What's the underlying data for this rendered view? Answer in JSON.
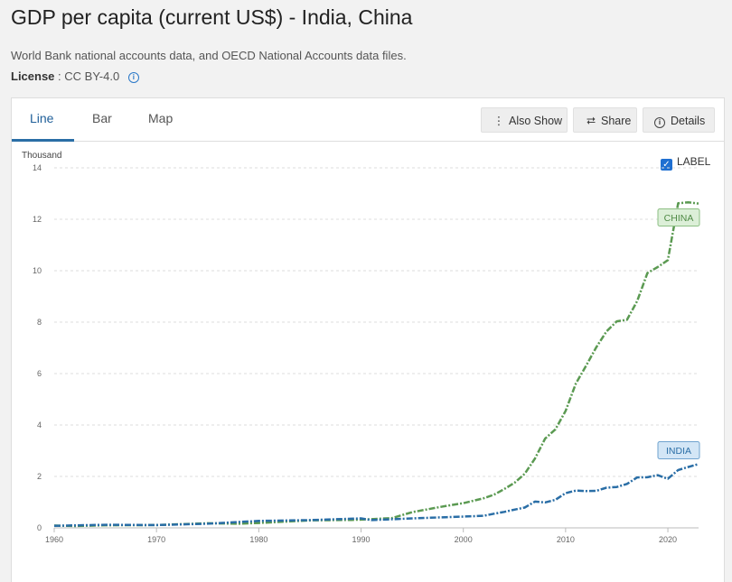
{
  "page": {
    "title": "GDP per capita (current US$) - India, China",
    "source": "World Bank national accounts data, and OECD National Accounts data files.",
    "license_label": "License",
    "license_value": ": CC BY-4.0",
    "info_glyph": "i"
  },
  "tabs": [
    {
      "label": "Line",
      "active": true
    },
    {
      "label": "Bar",
      "active": false
    },
    {
      "label": "Map",
      "active": false
    }
  ],
  "toolbar": {
    "also_show": "Also Show",
    "share": "Share",
    "details": "Details",
    "also_show_icon": "⋮",
    "share_icon": "⮂",
    "details_icon": "i"
  },
  "label_toggle": {
    "label": "LABEL",
    "checked": true,
    "check_glyph": "✓"
  },
  "colors": {
    "china": "#5b9a52",
    "india": "#2a6ea6",
    "grid": "#dcdcdc"
  },
  "chart_data": {
    "type": "line",
    "ylabel": "Thousand",
    "ylim": [
      0,
      14
    ],
    "yticks": [
      0,
      2,
      4,
      6,
      8,
      10,
      12,
      14
    ],
    "xlim": [
      1960,
      2023
    ],
    "xticks": [
      1960,
      1970,
      1980,
      1990,
      2000,
      2010,
      2020
    ],
    "grid": true,
    "series": [
      {
        "name": "CHINA",
        "color": "#5b9a52",
        "points": [
          [
            1960,
            0.09
          ],
          [
            1962,
            0.07
          ],
          [
            1965,
            0.1
          ],
          [
            1970,
            0.11
          ],
          [
            1975,
            0.18
          ],
          [
            1978,
            0.16
          ],
          [
            1980,
            0.19
          ],
          [
            1985,
            0.29
          ],
          [
            1989,
            0.31
          ],
          [
            1990,
            0.32
          ],
          [
            1993,
            0.38
          ],
          [
            1995,
            0.61
          ],
          [
            1998,
            0.83
          ],
          [
            2000,
            0.96
          ],
          [
            2002,
            1.15
          ],
          [
            2003,
            1.29
          ],
          [
            2004,
            1.51
          ],
          [
            2005,
            1.75
          ],
          [
            2006,
            2.1
          ],
          [
            2007,
            2.69
          ],
          [
            2008,
            3.47
          ],
          [
            2009,
            3.83
          ],
          [
            2010,
            4.55
          ],
          [
            2011,
            5.61
          ],
          [
            2012,
            6.3
          ],
          [
            2013,
            7.02
          ],
          [
            2014,
            7.64
          ],
          [
            2015,
            8.03
          ],
          [
            2016,
            8.09
          ],
          [
            2017,
            8.82
          ],
          [
            2018,
            9.91
          ],
          [
            2019,
            10.14
          ],
          [
            2020,
            10.41
          ],
          [
            2021,
            12.62
          ],
          [
            2022,
            12.66
          ],
          [
            2023,
            12.61
          ]
        ]
      },
      {
        "name": "INDIA",
        "color": "#2a6ea6",
        "points": [
          [
            1960,
            0.08
          ],
          [
            1965,
            0.12
          ],
          [
            1970,
            0.11
          ],
          [
            1975,
            0.16
          ],
          [
            1980,
            0.27
          ],
          [
            1985,
            0.3
          ],
          [
            1990,
            0.37
          ],
          [
            1991,
            0.3
          ],
          [
            1995,
            0.37
          ],
          [
            2000,
            0.44
          ],
          [
            2002,
            0.47
          ],
          [
            2003,
            0.55
          ],
          [
            2004,
            0.62
          ],
          [
            2005,
            0.71
          ],
          [
            2006,
            0.79
          ],
          [
            2007,
            1.02
          ],
          [
            2008,
            0.99
          ],
          [
            2009,
            1.09
          ],
          [
            2010,
            1.35
          ],
          [
            2011,
            1.45
          ],
          [
            2012,
            1.43
          ],
          [
            2013,
            1.44
          ],
          [
            2014,
            1.56
          ],
          [
            2015,
            1.59
          ],
          [
            2016,
            1.71
          ],
          [
            2017,
            1.96
          ],
          [
            2018,
            1.97
          ],
          [
            2019,
            2.05
          ],
          [
            2020,
            1.91
          ],
          [
            2021,
            2.25
          ],
          [
            2022,
            2.37
          ],
          [
            2023,
            2.48
          ]
        ]
      }
    ]
  }
}
